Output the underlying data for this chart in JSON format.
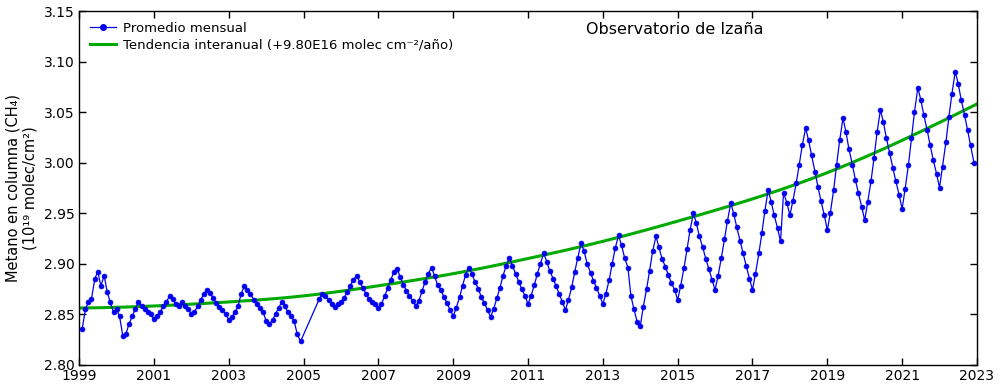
{
  "title": "Observatorio de Izaña",
  "ylabel_line1": "Metano en columna (CH₄)",
  "ylabel_line2": "(10¹⁹ molec/cm²)",
  "legend_monthly": "Promedio mensual",
  "legend_trend": "Tendencia interanual (+9.80E16 molec cm⁻²/año)",
  "xlim": [
    1999.0,
    2023.0
  ],
  "ylim": [
    2.8,
    3.15
  ],
  "yticks": [
    2.8,
    2.85,
    2.9,
    2.95,
    3.0,
    3.05,
    3.1,
    3.15
  ],
  "xticks": [
    1999,
    2001,
    2003,
    2005,
    2007,
    2009,
    2011,
    2013,
    2015,
    2017,
    2019,
    2021,
    2023
  ],
  "line_color": "#0000EE",
  "trend_color": "#00AA00",
  "marker_color": "#0000EE",
  "background_color": "#FFFFFF",
  "monthly_data": [
    [
      1999.08,
      2.835
    ],
    [
      1999.17,
      2.855
    ],
    [
      1999.25,
      2.862
    ],
    [
      1999.33,
      2.865
    ],
    [
      1999.42,
      2.885
    ],
    [
      1999.5,
      2.892
    ],
    [
      1999.58,
      2.878
    ],
    [
      1999.67,
      2.888
    ],
    [
      1999.75,
      2.872
    ],
    [
      1999.83,
      2.862
    ],
    [
      1999.92,
      2.852
    ],
    [
      2000.0,
      2.855
    ],
    [
      2000.08,
      2.848
    ],
    [
      2000.17,
      2.828
    ],
    [
      2000.25,
      2.83
    ],
    [
      2000.33,
      2.84
    ],
    [
      2000.42,
      2.848
    ],
    [
      2000.5,
      2.855
    ],
    [
      2000.58,
      2.862
    ],
    [
      2000.67,
      2.858
    ],
    [
      2000.75,
      2.855
    ],
    [
      2000.83,
      2.852
    ],
    [
      2000.92,
      2.85
    ],
    [
      2001.0,
      2.845
    ],
    [
      2001.08,
      2.848
    ],
    [
      2001.17,
      2.852
    ],
    [
      2001.25,
      2.858
    ],
    [
      2001.33,
      2.862
    ],
    [
      2001.42,
      2.868
    ],
    [
      2001.5,
      2.865
    ],
    [
      2001.58,
      2.86
    ],
    [
      2001.67,
      2.858
    ],
    [
      2001.75,
      2.862
    ],
    [
      2001.83,
      2.858
    ],
    [
      2001.92,
      2.855
    ],
    [
      2002.0,
      2.85
    ],
    [
      2002.08,
      2.852
    ],
    [
      2002.17,
      2.858
    ],
    [
      2002.25,
      2.864
    ],
    [
      2002.33,
      2.87
    ],
    [
      2002.42,
      2.874
    ],
    [
      2002.5,
      2.871
    ],
    [
      2002.58,
      2.866
    ],
    [
      2002.67,
      2.861
    ],
    [
      2002.75,
      2.857
    ],
    [
      2002.83,
      2.854
    ],
    [
      2002.92,
      2.85
    ],
    [
      2003.0,
      2.844
    ],
    [
      2003.08,
      2.847
    ],
    [
      2003.17,
      2.852
    ],
    [
      2003.25,
      2.858
    ],
    [
      2003.33,
      2.87
    ],
    [
      2003.42,
      2.878
    ],
    [
      2003.5,
      2.874
    ],
    [
      2003.58,
      2.87
    ],
    [
      2003.67,
      2.864
    ],
    [
      2003.75,
      2.86
    ],
    [
      2003.83,
      2.856
    ],
    [
      2003.92,
      2.852
    ],
    [
      2004.0,
      2.843
    ],
    [
      2004.08,
      2.84
    ],
    [
      2004.17,
      2.844
    ],
    [
      2004.25,
      2.85
    ],
    [
      2004.33,
      2.856
    ],
    [
      2004.42,
      2.862
    ],
    [
      2004.5,
      2.858
    ],
    [
      2004.58,
      2.852
    ],
    [
      2004.67,
      2.848
    ],
    [
      2004.75,
      2.843
    ],
    [
      2004.83,
      2.83
    ],
    [
      2004.92,
      2.823
    ],
    [
      2005.42,
      2.865
    ],
    [
      2005.5,
      2.87
    ],
    [
      2005.58,
      2.868
    ],
    [
      2005.67,
      2.864
    ],
    [
      2005.75,
      2.86
    ],
    [
      2005.83,
      2.857
    ],
    [
      2005.92,
      2.86
    ],
    [
      2006.0,
      2.862
    ],
    [
      2006.08,
      2.866
    ],
    [
      2006.17,
      2.872
    ],
    [
      2006.25,
      2.878
    ],
    [
      2006.33,
      2.884
    ],
    [
      2006.42,
      2.888
    ],
    [
      2006.5,
      2.882
    ],
    [
      2006.58,
      2.876
    ],
    [
      2006.67,
      2.87
    ],
    [
      2006.75,
      2.865
    ],
    [
      2006.83,
      2.862
    ],
    [
      2006.92,
      2.86
    ],
    [
      2007.0,
      2.856
    ],
    [
      2007.08,
      2.86
    ],
    [
      2007.17,
      2.868
    ],
    [
      2007.25,
      2.876
    ],
    [
      2007.33,
      2.884
    ],
    [
      2007.42,
      2.892
    ],
    [
      2007.5,
      2.895
    ],
    [
      2007.58,
      2.887
    ],
    [
      2007.67,
      2.879
    ],
    [
      2007.75,
      2.873
    ],
    [
      2007.83,
      2.868
    ],
    [
      2007.92,
      2.863
    ],
    [
      2008.0,
      2.858
    ],
    [
      2008.08,
      2.863
    ],
    [
      2008.17,
      2.873
    ],
    [
      2008.25,
      2.882
    ],
    [
      2008.33,
      2.89
    ],
    [
      2008.42,
      2.896
    ],
    [
      2008.5,
      2.888
    ],
    [
      2008.58,
      2.879
    ],
    [
      2008.67,
      2.874
    ],
    [
      2008.75,
      2.867
    ],
    [
      2008.83,
      2.861
    ],
    [
      2008.92,
      2.854
    ],
    [
      2009.0,
      2.848
    ],
    [
      2009.08,
      2.856
    ],
    [
      2009.17,
      2.867
    ],
    [
      2009.25,
      2.878
    ],
    [
      2009.33,
      2.889
    ],
    [
      2009.42,
      2.896
    ],
    [
      2009.5,
      2.89
    ],
    [
      2009.58,
      2.882
    ],
    [
      2009.67,
      2.875
    ],
    [
      2009.75,
      2.867
    ],
    [
      2009.83,
      2.861
    ],
    [
      2009.92,
      2.854
    ],
    [
      2010.0,
      2.847
    ],
    [
      2010.08,
      2.855
    ],
    [
      2010.17,
      2.866
    ],
    [
      2010.25,
      2.876
    ],
    [
      2010.33,
      2.888
    ],
    [
      2010.42,
      2.898
    ],
    [
      2010.5,
      2.906
    ],
    [
      2010.58,
      2.898
    ],
    [
      2010.67,
      2.89
    ],
    [
      2010.75,
      2.882
    ],
    [
      2010.83,
      2.875
    ],
    [
      2010.92,
      2.868
    ],
    [
      2011.0,
      2.86
    ],
    [
      2011.08,
      2.868
    ],
    [
      2011.17,
      2.879
    ],
    [
      2011.25,
      2.89
    ],
    [
      2011.33,
      2.9
    ],
    [
      2011.42,
      2.91
    ],
    [
      2011.5,
      2.902
    ],
    [
      2011.58,
      2.893
    ],
    [
      2011.67,
      2.885
    ],
    [
      2011.75,
      2.878
    ],
    [
      2011.83,
      2.87
    ],
    [
      2011.92,
      2.862
    ],
    [
      2012.0,
      2.854
    ],
    [
      2012.08,
      2.864
    ],
    [
      2012.17,
      2.877
    ],
    [
      2012.25,
      2.892
    ],
    [
      2012.33,
      2.906
    ],
    [
      2012.42,
      2.92
    ],
    [
      2012.5,
      2.912
    ],
    [
      2012.58,
      2.9
    ],
    [
      2012.67,
      2.891
    ],
    [
      2012.75,
      2.883
    ],
    [
      2012.83,
      2.876
    ],
    [
      2012.92,
      2.868
    ],
    [
      2013.0,
      2.86
    ],
    [
      2013.08,
      2.87
    ],
    [
      2013.17,
      2.884
    ],
    [
      2013.25,
      2.9
    ],
    [
      2013.33,
      2.915
    ],
    [
      2013.42,
      2.928
    ],
    [
      2013.5,
      2.918
    ],
    [
      2013.58,
      2.906
    ],
    [
      2013.67,
      2.896
    ],
    [
      2013.75,
      2.868
    ],
    [
      2013.83,
      2.855
    ],
    [
      2013.92,
      2.842
    ],
    [
      2014.0,
      2.838
    ],
    [
      2014.08,
      2.857
    ],
    [
      2014.17,
      2.875
    ],
    [
      2014.25,
      2.893
    ],
    [
      2014.33,
      2.912
    ],
    [
      2014.42,
      2.927
    ],
    [
      2014.5,
      2.916
    ],
    [
      2014.58,
      2.905
    ],
    [
      2014.67,
      2.897
    ],
    [
      2014.75,
      2.889
    ],
    [
      2014.83,
      2.881
    ],
    [
      2014.92,
      2.874
    ],
    [
      2015.0,
      2.864
    ],
    [
      2015.08,
      2.878
    ],
    [
      2015.17,
      2.896
    ],
    [
      2015.25,
      2.914
    ],
    [
      2015.33,
      2.933
    ],
    [
      2015.42,
      2.95
    ],
    [
      2015.5,
      2.94
    ],
    [
      2015.58,
      2.927
    ],
    [
      2015.67,
      2.916
    ],
    [
      2015.75,
      2.905
    ],
    [
      2015.83,
      2.895
    ],
    [
      2015.92,
      2.884
    ],
    [
      2016.0,
      2.874
    ],
    [
      2016.08,
      2.888
    ],
    [
      2016.17,
      2.906
    ],
    [
      2016.25,
      2.924
    ],
    [
      2016.33,
      2.942
    ],
    [
      2016.42,
      2.96
    ],
    [
      2016.5,
      2.949
    ],
    [
      2016.58,
      2.936
    ],
    [
      2016.67,
      2.922
    ],
    [
      2016.75,
      2.91
    ],
    [
      2016.83,
      2.898
    ],
    [
      2016.92,
      2.885
    ],
    [
      2017.0,
      2.874
    ],
    [
      2017.08,
      2.89
    ],
    [
      2017.17,
      2.91
    ],
    [
      2017.25,
      2.93
    ],
    [
      2017.33,
      2.952
    ],
    [
      2017.42,
      2.973
    ],
    [
      2017.5,
      2.961
    ],
    [
      2017.58,
      2.948
    ],
    [
      2017.67,
      2.935
    ],
    [
      2017.75,
      2.922
    ],
    [
      2017.83,
      2.97
    ],
    [
      2017.92,
      2.96
    ],
    [
      2018.0,
      2.948
    ],
    [
      2018.08,
      2.962
    ],
    [
      2018.17,
      2.98
    ],
    [
      2018.25,
      2.998
    ],
    [
      2018.33,
      3.017
    ],
    [
      2018.42,
      3.034
    ],
    [
      2018.5,
      3.022
    ],
    [
      2018.58,
      3.007
    ],
    [
      2018.67,
      2.991
    ],
    [
      2018.75,
      2.976
    ],
    [
      2018.83,
      2.962
    ],
    [
      2018.92,
      2.948
    ],
    [
      2019.0,
      2.933
    ],
    [
      2019.08,
      2.95
    ],
    [
      2019.17,
      2.973
    ],
    [
      2019.25,
      2.998
    ],
    [
      2019.33,
      3.022
    ],
    [
      2019.42,
      3.044
    ],
    [
      2019.5,
      3.03
    ],
    [
      2019.58,
      3.013
    ],
    [
      2019.67,
      2.998
    ],
    [
      2019.75,
      2.983
    ],
    [
      2019.83,
      2.97
    ],
    [
      2019.92,
      2.956
    ],
    [
      2020.0,
      2.943
    ],
    [
      2020.08,
      2.961
    ],
    [
      2020.17,
      2.982
    ],
    [
      2020.25,
      3.005
    ],
    [
      2020.33,
      3.03
    ],
    [
      2020.42,
      3.052
    ],
    [
      2020.5,
      3.04
    ],
    [
      2020.58,
      3.024
    ],
    [
      2020.67,
      3.009
    ],
    [
      2020.75,
      2.995
    ],
    [
      2020.83,
      2.982
    ],
    [
      2020.92,
      2.968
    ],
    [
      2021.0,
      2.954
    ],
    [
      2021.08,
      2.974
    ],
    [
      2021.17,
      2.998
    ],
    [
      2021.25,
      3.024
    ],
    [
      2021.33,
      3.05
    ],
    [
      2021.42,
      3.074
    ],
    [
      2021.5,
      3.062
    ],
    [
      2021.58,
      3.047
    ],
    [
      2021.67,
      3.032
    ],
    [
      2021.75,
      3.017
    ],
    [
      2021.83,
      3.003
    ],
    [
      2021.92,
      2.989
    ],
    [
      2022.0,
      2.975
    ],
    [
      2022.08,
      2.996
    ],
    [
      2022.17,
      3.02
    ],
    [
      2022.25,
      3.045
    ],
    [
      2022.33,
      3.068
    ],
    [
      2022.42,
      3.09
    ],
    [
      2022.5,
      3.078
    ],
    [
      2022.58,
      3.062
    ],
    [
      2022.67,
      3.047
    ],
    [
      2022.75,
      3.032
    ],
    [
      2022.83,
      3.017
    ],
    [
      2022.92,
      3.0
    ]
  ],
  "trend_knots_x": [
    1999.0,
    2001.0,
    2003.0,
    2005.0,
    2007.0,
    2009.0,
    2011.0,
    2013.0,
    2015.0,
    2017.0,
    2019.0,
    2021.0,
    2023.0
  ],
  "trend_knots_y": [
    2.856,
    2.858,
    2.862,
    2.868,
    2.878,
    2.89,
    2.905,
    2.922,
    2.942,
    2.964,
    2.99,
    3.022,
    3.058
  ]
}
